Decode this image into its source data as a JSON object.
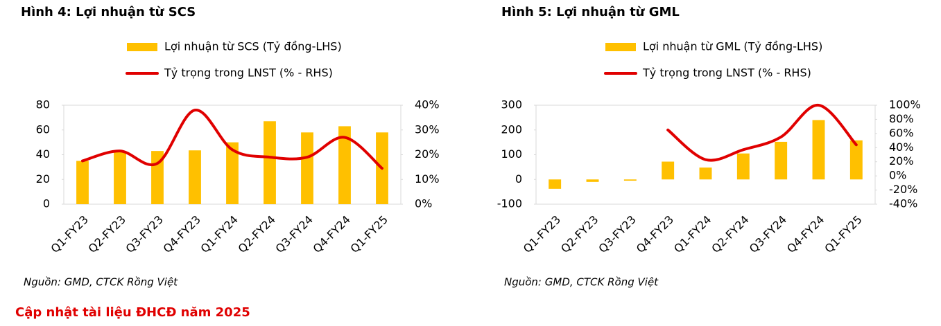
{
  "chart_data": [
    {
      "type": "bar-line",
      "title": "Hình 4: Lợi nhuận từ SCS",
      "categories": [
        "Q1-FY23",
        "Q2-FY23",
        "Q3-FY23",
        "Q4-FY23",
        "Q1-FY24",
        "Q2-FY24",
        "Q3-FY24",
        "Q4-FY24",
        "Q1-FY25"
      ],
      "series": [
        {
          "name": "Lợi nhuận từ SCS (Tỷ đồng-LHS)",
          "type": "bar",
          "color": "#FFC000",
          "values": [
            35,
            42,
            43,
            43.5,
            50,
            67,
            58,
            63,
            58
          ]
        },
        {
          "name": "Tỷ trọng trong LNST (% - RHS)",
          "type": "line",
          "axis": "y2",
          "color": "#E00000",
          "values": [
            17.5,
            21.5,
            16.5,
            38,
            22,
            19,
            19,
            27,
            14.5
          ]
        }
      ],
      "ylim": [
        0,
        80
      ],
      "yticks": [
        0,
        20,
        40,
        60,
        80
      ],
      "y2lim": [
        0,
        40
      ],
      "y2ticks": [
        {
          "value": 0,
          "label": "0%"
        },
        {
          "value": 10,
          "label": "10%"
        },
        {
          "value": 20,
          "label": "20%"
        },
        {
          "value": 30,
          "label": "30%"
        },
        {
          "value": 40,
          "label": "40%"
        }
      ],
      "source": "Nguồn: GMD, CTCK Rồng Việt"
    },
    {
      "type": "bar-line",
      "title": "Hình 5: Lợi nhuận từ GML",
      "categories": [
        "Q1-FY23",
        "Q2-FY23",
        "Q3-FY23",
        "Q4-FY23",
        "Q1-FY24",
        "Q2-FY24",
        "Q3-FY24",
        "Q4-FY24",
        "Q1-FY25"
      ],
      "series": [
        {
          "name": "Lợi nhuận từ GML (Tỷ đồng-LHS)",
          "type": "bar",
          "color": "#FFC000",
          "values": [
            -38,
            -10,
            -5,
            72,
            48,
            105,
            152,
            240,
            158
          ]
        },
        {
          "name": "Tỷ trọng trong LNST (% - RHS)",
          "type": "line",
          "axis": "y2",
          "color": "#E00000",
          "values": [
            null,
            null,
            null,
            65,
            23,
            37,
            55,
            100,
            44
          ]
        }
      ],
      "ylim": [
        -100,
        300
      ],
      "yticks": [
        -100,
        0,
        100,
        200,
        300
      ],
      "y2lim": [
        -40,
        100
      ],
      "y2ticks": [
        {
          "value": -40,
          "label": "-40%"
        },
        {
          "value": -20,
          "label": "-20%"
        },
        {
          "value": 0,
          "label": "0%"
        },
        {
          "value": 20,
          "label": "20%"
        },
        {
          "value": 40,
          "label": "40%"
        },
        {
          "value": 60,
          "label": "60%"
        },
        {
          "value": 80,
          "label": "80%"
        },
        {
          "value": 100,
          "label": "100%"
        }
      ],
      "source": "Nguồn: GMD, CTCK Rồng Việt"
    }
  ],
  "footer": "Cập nhật tài liệu ĐHCĐ năm 2025"
}
